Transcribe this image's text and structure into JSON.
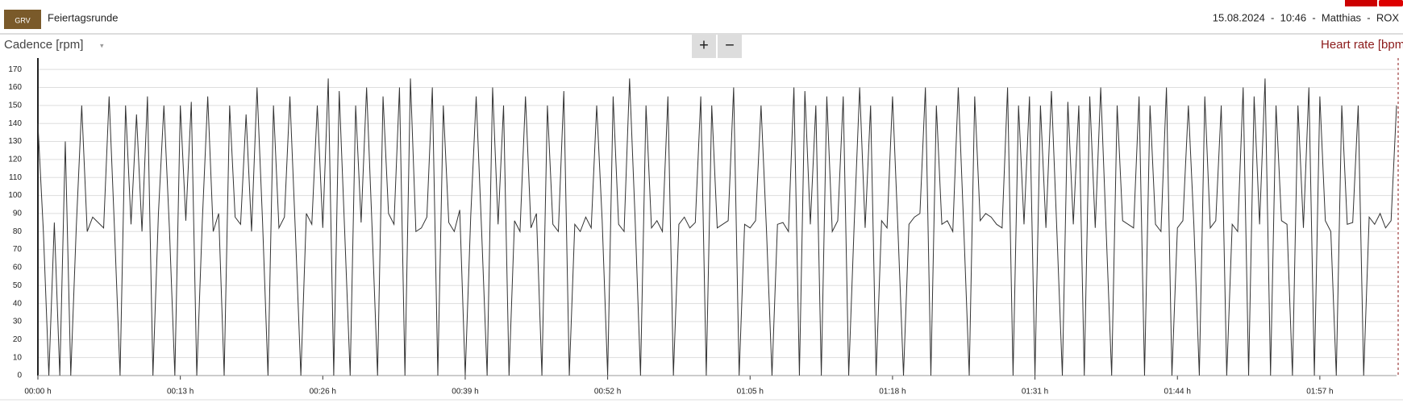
{
  "header": {
    "logo": "GRV",
    "title": "Feiertagsrunde",
    "meta": "15.08.2024  -  10:46  -  Matthias  -  ROX",
    "zoom_in": "+",
    "zoom_out": "−"
  },
  "chart_data": {
    "type": "line",
    "y_label": "Cadence [rpm]",
    "y2_label": "Heart rate [bpm]",
    "x": [
      0,
      0.5,
      1,
      1.5,
      2,
      2.5,
      3,
      3.5,
      4,
      4.5,
      5,
      5.5,
      6,
      6.5,
      7,
      7.5,
      8,
      8.5,
      9,
      9.5,
      10,
      10.5,
      11,
      11.5,
      12,
      12.5,
      13,
      13.5,
      14,
      14.5,
      15,
      15.5,
      16,
      16.5,
      17,
      17.5,
      18,
      18.5,
      19,
      19.5,
      20,
      20.5,
      21,
      21.5,
      22,
      22.5,
      23,
      23.5,
      24,
      24.5,
      25,
      25.5,
      26,
      26.5,
      27,
      27.5,
      28,
      28.5,
      29,
      29.5,
      30,
      30.5,
      31,
      31.5,
      32,
      32.5,
      33,
      33.5,
      34,
      34.5,
      35,
      35.5,
      36,
      36.5,
      37,
      37.5,
      38,
      38.5,
      39,
      39.5,
      40,
      40.5,
      41,
      41.5,
      42,
      42.5,
      43,
      43.5,
      44,
      44.5,
      45,
      45.5,
      46,
      46.5,
      47,
      47.5,
      48,
      48.5,
      49,
      49.5,
      50,
      50.5,
      51,
      51.5,
      52,
      52.5,
      53,
      53.5,
      54,
      54.5,
      55,
      55.5,
      56,
      56.5,
      57,
      57.5,
      58,
      58.5,
      59,
      59.5,
      60,
      60.5,
      61,
      61.5,
      62,
      62.5,
      63,
      63.5,
      64,
      64.5,
      65,
      65.5,
      66,
      66.5,
      67,
      67.5,
      68,
      68.5,
      69,
      69.5,
      70,
      70.5,
      71,
      71.5,
      72,
      72.5,
      73,
      73.5,
      74,
      74.5,
      75,
      75.5,
      76,
      76.5,
      77,
      77.5,
      78,
      78.5,
      79,
      79.5,
      80,
      80.5,
      81,
      81.5,
      82,
      82.5,
      83,
      83.5,
      84,
      84.5,
      85,
      85.5,
      86,
      86.5,
      87,
      87.5,
      88,
      88.5,
      89,
      89.5,
      90,
      90.5,
      91,
      91.5,
      92,
      92.5,
      93,
      93.5,
      94,
      94.5,
      95,
      95.5,
      96,
      96.5,
      97,
      97.5,
      98,
      98.5,
      99,
      99.5,
      100,
      100.5,
      101,
      101.5,
      102,
      102.5,
      103,
      103.5,
      104,
      104.5,
      105,
      105.5,
      106,
      106.5,
      107,
      107.5,
      108,
      108.5,
      109,
      109.5,
      110,
      110.5,
      111,
      111.5,
      112,
      112.5,
      113,
      113.5,
      114,
      114.5,
      115,
      115.5,
      116,
      116.5,
      117,
      117.5,
      118,
      118.5,
      119,
      119.5,
      120,
      120.5,
      121,
      121.5,
      122,
      122.5,
      123,
      123.5,
      124
    ],
    "series": [
      {
        "name": "Cadence",
        "color": "#333333",
        "values": [
          140,
          80,
          0,
          85,
          0,
          130,
          0,
          82,
          150,
          80,
          88,
          85,
          82,
          155,
          80,
          0,
          150,
          84,
          145,
          80,
          155,
          0,
          90,
          150,
          82,
          0,
          150,
          86,
          152,
          0,
          85,
          155,
          80,
          90,
          0,
          150,
          88,
          84,
          145,
          80,
          160,
          86,
          0,
          150,
          82,
          88,
          155,
          80,
          0,
          90,
          84,
          150,
          82,
          165,
          0,
          158,
          80,
          0,
          150,
          85,
          160,
          82,
          0,
          155,
          90,
          84,
          160,
          0,
          165,
          80,
          82,
          88,
          160,
          0,
          150,
          85,
          80,
          92,
          0,
          88,
          155,
          80,
          0,
          160,
          84,
          150,
          0,
          86,
          80,
          155,
          82,
          90,
          0,
          150,
          84,
          80,
          158,
          0,
          84,
          80,
          88,
          82,
          150,
          86,
          0,
          155,
          84,
          80,
          165,
          88,
          0,
          150,
          82,
          86,
          80,
          155,
          0,
          84,
          88,
          82,
          85,
          155,
          0,
          150,
          82,
          84,
          86,
          160,
          0,
          84,
          82,
          86,
          150,
          80,
          0,
          84,
          85,
          80,
          160,
          0,
          158,
          84,
          150,
          0,
          155,
          80,
          86,
          155,
          0,
          84,
          160,
          82,
          150,
          0,
          86,
          82,
          155,
          80,
          0,
          84,
          88,
          90,
          160,
          0,
          150,
          84,
          86,
          80,
          160,
          82,
          0,
          155,
          86,
          90,
          88,
          84,
          82,
          160,
          0,
          150,
          84,
          155,
          0,
          150,
          82,
          158,
          80,
          0,
          152,
          84,
          150,
          0,
          155,
          82,
          160,
          80,
          0,
          150,
          86,
          84,
          82,
          155,
          0,
          150,
          84,
          80,
          160,
          0,
          82,
          86,
          150,
          84,
          0,
          155,
          82,
          86,
          150,
          0,
          84,
          80,
          160,
          0,
          155,
          84,
          165,
          0,
          150,
          86,
          84,
          0,
          150,
          82,
          160,
          0,
          155,
          86,
          80,
          0,
          150,
          84,
          85,
          150,
          0,
          88,
          84,
          90,
          82,
          86,
          150
        ]
      }
    ],
    "xlim": [
      0,
      124
    ],
    "ylim": [
      0,
      175
    ],
    "xticks": [
      {
        "value": 0,
        "label": "00:00 h"
      },
      {
        "value": 13,
        "label": "00:13 h"
      },
      {
        "value": 26,
        "label": "00:26 h"
      },
      {
        "value": 39,
        "label": "00:39 h"
      },
      {
        "value": 52,
        "label": "00:52 h"
      },
      {
        "value": 65,
        "label": "01:05 h"
      },
      {
        "value": 78,
        "label": "01:18 h"
      },
      {
        "value": 91,
        "label": "01:31 h"
      },
      {
        "value": 104,
        "label": "01:44 h"
      },
      {
        "value": 117,
        "label": "01:57 h"
      }
    ],
    "yticks": [
      0,
      10,
      20,
      30,
      40,
      50,
      60,
      70,
      80,
      90,
      100,
      110,
      120,
      130,
      140,
      150,
      160,
      170
    ],
    "grid": true
  }
}
